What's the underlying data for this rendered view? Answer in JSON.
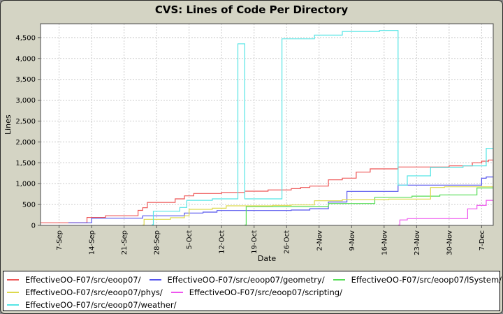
{
  "window": {
    "title": "CVS: Lines of Code Per Directory"
  },
  "colors": {
    "panel_bg": "#d4d4c4",
    "plot_bg": "#ffffff",
    "grid": "#cccccc",
    "plot_border": "#4a4a4a",
    "tick": "#555555",
    "text": "#000000",
    "legend_bg": "#ffffff",
    "legend_border": "#000000"
  },
  "chart_data": {
    "type": "line",
    "title": "CVS: Lines of Code Per Directory",
    "xlabel": "Date",
    "ylabel": "Lines",
    "grid": "dashed",
    "legend_position": "bottom",
    "x_domain_days": [
      0,
      97.5
    ],
    "x_ticks": [
      {
        "day": 4,
        "label": "7-Sep"
      },
      {
        "day": 11,
        "label": "14-Sep"
      },
      {
        "day": 18,
        "label": "21-Sep"
      },
      {
        "day": 25,
        "label": "28-Sep"
      },
      {
        "day": 32,
        "label": "5-Oct"
      },
      {
        "day": 39,
        "label": "12-Oct"
      },
      {
        "day": 46,
        "label": "19-Oct"
      },
      {
        "day": 53,
        "label": "26-Oct"
      },
      {
        "day": 60,
        "label": "2-Nov"
      },
      {
        "day": 67,
        "label": "9-Nov"
      },
      {
        "day": 74,
        "label": "16-Nov"
      },
      {
        "day": 81,
        "label": "23-Nov"
      },
      {
        "day": 88,
        "label": "30-Nov"
      },
      {
        "day": 95,
        "label": "7-Dec"
      }
    ],
    "ylim": [
      0,
      4833
    ],
    "y_ticks": [
      {
        "value": 0,
        "label": "0"
      },
      {
        "value": 500,
        "label": "500"
      },
      {
        "value": 1000,
        "label": "1,000"
      },
      {
        "value": 1500,
        "label": "1,500"
      },
      {
        "value": 2000,
        "label": "2,000"
      },
      {
        "value": 2500,
        "label": "2,500"
      },
      {
        "value": 3000,
        "label": "3,000"
      },
      {
        "value": 3500,
        "label": "3,500"
      },
      {
        "value": 4000,
        "label": "4,000"
      },
      {
        "value": 4500,
        "label": "4,500"
      }
    ],
    "legend_rows": [
      [
        0,
        1,
        2
      ],
      [
        3,
        4
      ],
      [
        5
      ]
    ],
    "series": [
      {
        "name": "EffectiveOO-F07/src/eoop07/",
        "color": "#ee5555",
        "points": [
          [
            0,
            62
          ],
          [
            10,
            190
          ],
          [
            14,
            230
          ],
          [
            21,
            360
          ],
          [
            22,
            423
          ],
          [
            23,
            550
          ],
          [
            29,
            635
          ],
          [
            31,
            707
          ],
          [
            33,
            764
          ],
          [
            39,
            790
          ],
          [
            44,
            820
          ],
          [
            49,
            850
          ],
          [
            54,
            880
          ],
          [
            56,
            908
          ],
          [
            58,
            941
          ],
          [
            62,
            1092
          ],
          [
            65,
            1132
          ],
          [
            68,
            1276
          ],
          [
            71,
            1354
          ],
          [
            77,
            1399
          ],
          [
            88,
            1427
          ],
          [
            93,
            1500
          ],
          [
            95,
            1538
          ],
          [
            96.5,
            1567
          ]
        ]
      },
      {
        "name": "EffectiveOO-F07/src/eoop07/geometry/",
        "color": "#5555ee",
        "points": [
          [
            6,
            62
          ],
          [
            11,
            172
          ],
          [
            22,
            229
          ],
          [
            31,
            296
          ],
          [
            35,
            318
          ],
          [
            38,
            356
          ],
          [
            54,
            368
          ],
          [
            58,
            400
          ],
          [
            62,
            560
          ],
          [
            66,
            814
          ],
          [
            77,
            965
          ],
          [
            95,
            1130
          ],
          [
            96,
            1160
          ]
        ]
      },
      {
        "name": "EffectiveOO-F07/src/eoop07/lSystem/",
        "color": "#55dd55",
        "points": [
          [
            44,
            12
          ],
          [
            44.3,
            451
          ],
          [
            62,
            523
          ],
          [
            72,
            674
          ],
          [
            80,
            700
          ],
          [
            86,
            730
          ],
          [
            94,
            897
          ]
        ]
      },
      {
        "name": "EffectiveOO-F07/src/eoop07/phys/",
        "color": "#ddd94d",
        "points": [
          [
            22,
            10
          ],
          [
            22.3,
            145
          ],
          [
            28,
            184
          ],
          [
            31,
            230
          ],
          [
            32,
            385
          ],
          [
            37,
            412
          ],
          [
            40,
            468
          ],
          [
            50,
            480
          ],
          [
            54,
            490
          ],
          [
            59,
            590
          ],
          [
            65,
            619
          ],
          [
            75,
            630
          ],
          [
            84,
            908
          ],
          [
            87,
            925
          ]
        ]
      },
      {
        "name": "EffectiveOO-F07/src/eoop07/scripting/",
        "color": "#ee55ee",
        "points": [
          [
            77,
            8
          ],
          [
            77.4,
            130
          ],
          [
            79,
            162
          ],
          [
            92,
            396
          ],
          [
            94,
            480
          ],
          [
            96,
            600
          ]
        ]
      },
      {
        "name": "EffectiveOO-F07/src/eoop07/weather/",
        "color": "#55e5e5",
        "points": [
          [
            24,
            17
          ],
          [
            24.3,
            340
          ],
          [
            30,
            430
          ],
          [
            31.5,
            600
          ],
          [
            37,
            635
          ],
          [
            42.5,
            4352
          ],
          [
            44,
            635
          ],
          [
            52,
            4470
          ],
          [
            59,
            4560
          ],
          [
            65,
            4648
          ],
          [
            73,
            4670
          ],
          [
            77,
            965
          ],
          [
            79,
            1187
          ],
          [
            84,
            1388
          ],
          [
            91,
            1427
          ],
          [
            96,
            1845
          ]
        ]
      }
    ]
  }
}
